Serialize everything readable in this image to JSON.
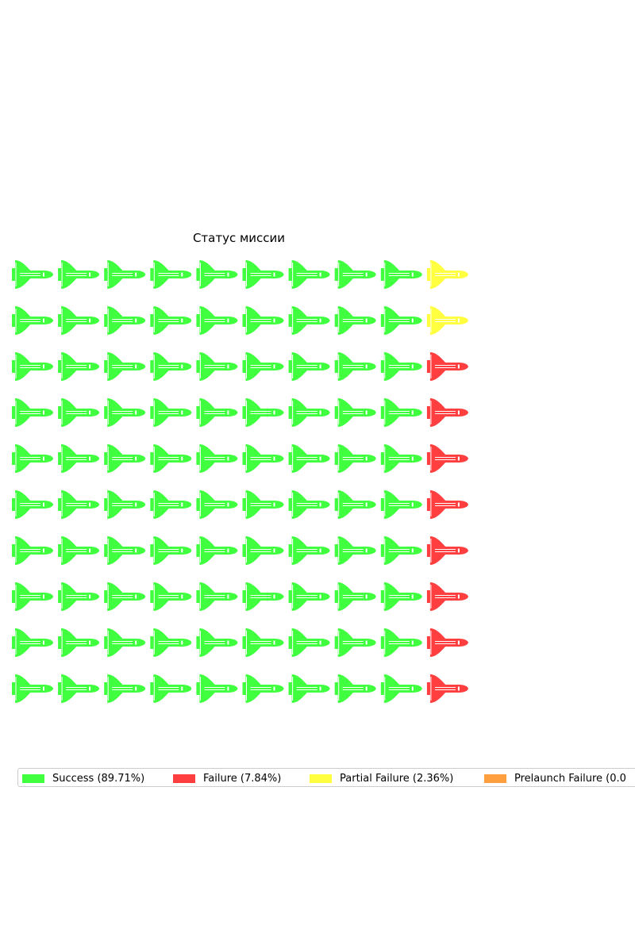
{
  "chart_data": {
    "type": "waffle",
    "title": "Статус миссии",
    "rows": 10,
    "columns": 10,
    "icon": "space-shuttle-icon",
    "legend_position": "bottom",
    "categories": [
      {
        "name": "Success",
        "label": "Success (89.71%)",
        "percent": 89.71,
        "icon_count": 90,
        "color": "#3fff3f"
      },
      {
        "name": "Failure",
        "label": "Failure (7.84%)",
        "percent": 7.84,
        "icon_count": 8,
        "color": "#ff3f3f"
      },
      {
        "name": "Partial Failure",
        "label": "Partial Failure (2.36%)",
        "percent": 2.36,
        "icon_count": 2,
        "color": "#ffff3f"
      },
      {
        "name": "Prelaunch Failure",
        "label": "Prelaunch Failure (0.0",
        "percent": 0.0,
        "icon_count": 0,
        "color": "#ff9f3f"
      }
    ]
  }
}
